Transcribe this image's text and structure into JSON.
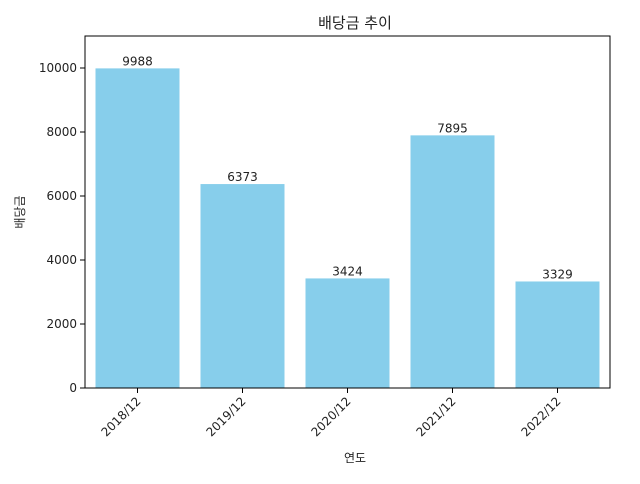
{
  "chart_data": {
    "type": "bar",
    "title": "배당금 추이",
    "xlabel": "연도",
    "ylabel": "배당금",
    "categories": [
      "2018/12",
      "2019/12",
      "2020/12",
      "2021/12",
      "2022/12"
    ],
    "values": [
      9988,
      6373,
      3424,
      7895,
      3329
    ],
    "ylim": [
      0,
      11000
    ],
    "yticks": [
      0,
      2000,
      4000,
      6000,
      8000,
      10000
    ],
    "bar_color": "#87CEEB",
    "grid": false,
    "legend": "none",
    "x_tick_rotation": -45
  }
}
